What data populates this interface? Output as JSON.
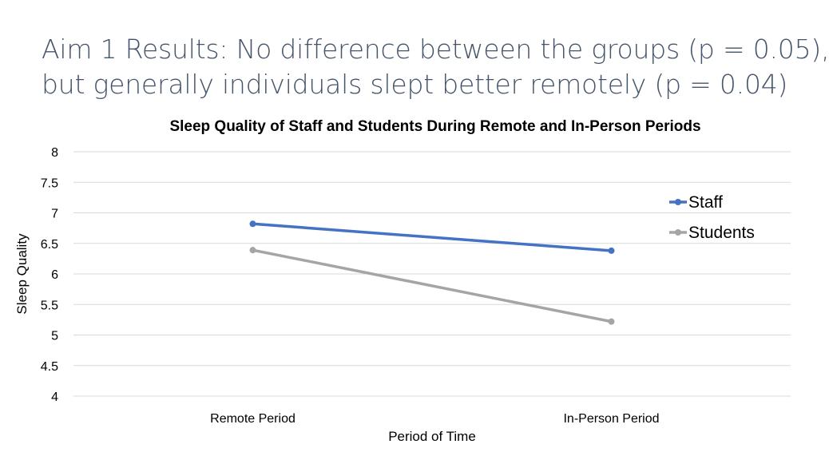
{
  "slide": {
    "title_line1": "Aim 1 Results: No difference between the groups (p = 0.05),",
    "title_line2": "but generally individuals slept better remotely (p = 0.04)"
  },
  "chart_data": {
    "type": "line",
    "title": "Sleep Quality of Staff and Students During Remote and In-Person Periods",
    "xlabel": "Period of Time",
    "ylabel": "Sleep Quality",
    "categories": [
      "Remote Period",
      "In-Person Period"
    ],
    "ylim": [
      4,
      8
    ],
    "yticks": [
      "4",
      "4.5",
      "5",
      "5.5",
      "6",
      "6.5",
      "7",
      "7.5",
      "8"
    ],
    "grid": true,
    "legend": "right",
    "series": [
      {
        "name": "Staff",
        "values": [
          6.82,
          6.38
        ],
        "color": "#4472c4"
      },
      {
        "name": "Students",
        "values": [
          6.39,
          5.22
        ],
        "color": "#a5a5a5"
      }
    ]
  }
}
